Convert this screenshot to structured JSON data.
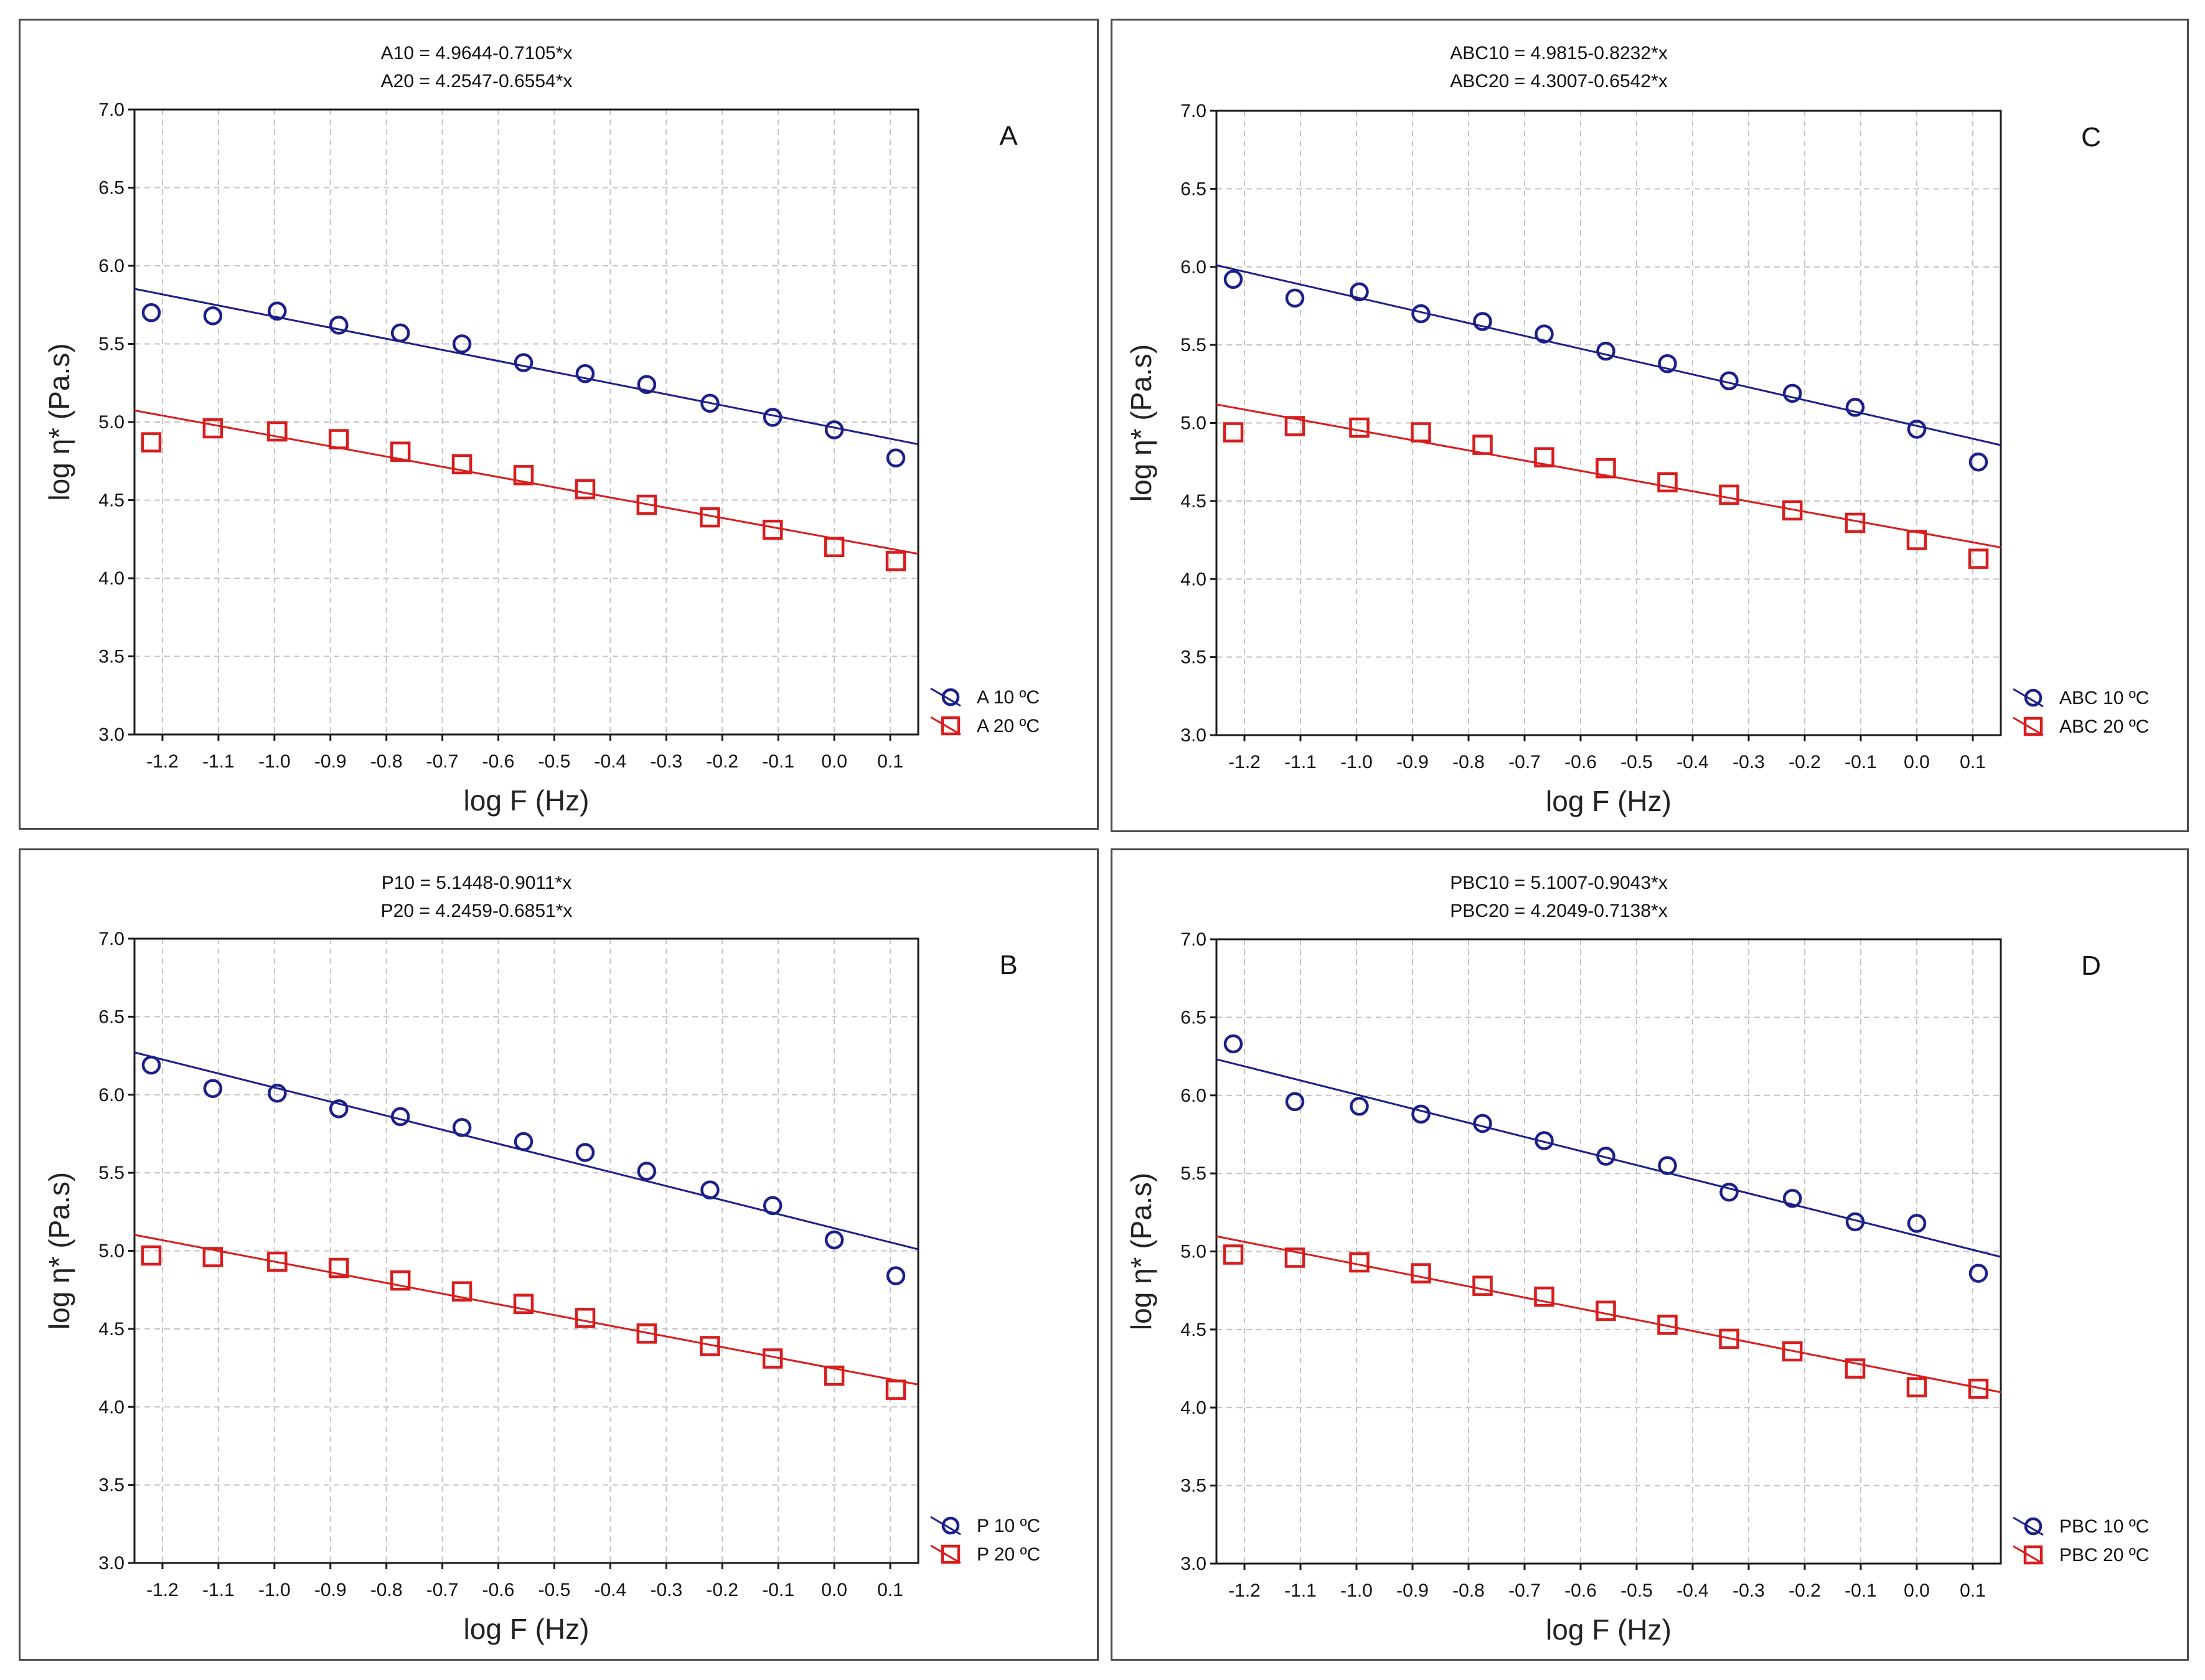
{
  "chart_data": [
    {
      "type": "scatter",
      "panel_label": "A",
      "equations": [
        "A10 = 4.9644-0.7105*x",
        "A20 = 4.2547-0.6554*x"
      ],
      "xlabel": "log F (Hz)",
      "ylabel": "log η* (Pa.s)",
      "xlim": [
        -1.25,
        0.15
      ],
      "ylim": [
        3.0,
        7.0
      ],
      "xticks": [
        "-1.2",
        "-1.1",
        "-1.0",
        "-0.9",
        "-0.8",
        "-0.7",
        "-0.6",
        "-0.5",
        "-0.4",
        "-0.3",
        "-0.2",
        "-0.1",
        "0.0",
        "0.1"
      ],
      "yticks": [
        "3.0",
        "3.5",
        "4.0",
        "4.5",
        "5.0",
        "5.5",
        "6.0",
        "6.5",
        "7.0"
      ],
      "grid": true,
      "legend_position": "bottom-right",
      "series": [
        {
          "name": "A 10 ºC",
          "marker": "circle",
          "color": "#1c1f8a",
          "fit": {
            "intercept": 4.9644,
            "slope": -0.7105
          },
          "x": [
            -1.22,
            -1.11,
            -0.995,
            -0.885,
            -0.775,
            -0.665,
            -0.555,
            -0.445,
            -0.335,
            -0.222,
            -0.11,
            0.0,
            0.11
          ],
          "y": [
            5.7,
            5.68,
            5.71,
            5.62,
            5.57,
            5.5,
            5.38,
            5.31,
            5.24,
            5.12,
            5.03,
            4.95,
            4.77
          ]
        },
        {
          "name": "A 20 ºC",
          "marker": "square",
          "color": "#d91c1c",
          "fit": {
            "intercept": 4.2547,
            "slope": -0.6554
          },
          "x": [
            -1.22,
            -1.11,
            -0.995,
            -0.885,
            -0.775,
            -0.665,
            -0.555,
            -0.445,
            -0.335,
            -0.222,
            -0.11,
            0.0,
            0.11
          ],
          "y": [
            4.87,
            4.96,
            4.94,
            4.89,
            4.81,
            4.73,
            4.66,
            4.57,
            4.47,
            4.39,
            4.31,
            4.2,
            4.11
          ]
        }
      ]
    },
    {
      "type": "scatter",
      "panel_label": "C",
      "equations": [
        "ABC10 = 4.9815-0.8232*x",
        "ABC20 = 4.3007-0.6542*x"
      ],
      "xlabel": "log F (Hz)",
      "ylabel": "log η* (Pa.s)",
      "xlim": [
        -1.25,
        0.15
      ],
      "ylim": [
        3.0,
        7.0
      ],
      "xticks": [
        "-1.2",
        "-1.1",
        "-1.0",
        "-0.9",
        "-0.8",
        "-0.7",
        "-0.6",
        "-0.5",
        "-0.4",
        "-0.3",
        "-0.2",
        "-0.1",
        "0.0",
        "0.1"
      ],
      "yticks": [
        "3.0",
        "3.5",
        "4.0",
        "4.5",
        "5.0",
        "5.5",
        "6.0",
        "6.5",
        "7.0"
      ],
      "grid": true,
      "legend_position": "bottom-right",
      "series": [
        {
          "name": "ABC 10 ºC",
          "marker": "circle",
          "color": "#1c1f8a",
          "fit": {
            "intercept": 4.9815,
            "slope": -0.8232
          },
          "x": [
            -1.22,
            -1.11,
            -0.995,
            -0.885,
            -0.775,
            -0.665,
            -0.555,
            -0.445,
            -0.335,
            -0.222,
            -0.11,
            0.0,
            0.11
          ],
          "y": [
            5.92,
            5.8,
            5.84,
            5.7,
            5.65,
            5.57,
            5.46,
            5.38,
            5.27,
            5.19,
            5.1,
            4.96,
            4.75
          ]
        },
        {
          "name": "ABC 20 ºC",
          "marker": "square",
          "color": "#d91c1c",
          "fit": {
            "intercept": 4.3007,
            "slope": -0.6542
          },
          "x": [
            -1.22,
            -1.11,
            -0.995,
            -0.885,
            -0.775,
            -0.665,
            -0.555,
            -0.445,
            -0.335,
            -0.222,
            -0.11,
            0.0,
            0.11
          ],
          "y": [
            4.94,
            4.98,
            4.97,
            4.94,
            4.86,
            4.78,
            4.71,
            4.62,
            4.54,
            4.44,
            4.36,
            4.25,
            4.13
          ]
        }
      ]
    },
    {
      "type": "scatter",
      "panel_label": "B",
      "equations": [
        "P10 = 5.1448-0.9011*x",
        "P20 = 4.2459-0.6851*x"
      ],
      "xlabel": "log F (Hz)",
      "ylabel": "log η* (Pa.s)",
      "xlim": [
        -1.25,
        0.15
      ],
      "ylim": [
        3.0,
        7.0
      ],
      "xticks": [
        "-1.2",
        "-1.1",
        "-1.0",
        "-0.9",
        "-0.8",
        "-0.7",
        "-0.6",
        "-0.5",
        "-0.4",
        "-0.3",
        "-0.2",
        "-0.1",
        "0.0",
        "0.1"
      ],
      "yticks": [
        "3.0",
        "3.5",
        "4.0",
        "4.5",
        "5.0",
        "5.5",
        "6.0",
        "6.5",
        "7.0"
      ],
      "grid": true,
      "legend_position": "bottom-right",
      "series": [
        {
          "name": "P 10 ºC",
          "marker": "circle",
          "color": "#1c1f8a",
          "fit": {
            "intercept": 5.1448,
            "slope": -0.9011
          },
          "x": [
            -1.22,
            -1.11,
            -0.995,
            -0.885,
            -0.775,
            -0.665,
            -0.555,
            -0.445,
            -0.335,
            -0.222,
            -0.11,
            0.0,
            0.11
          ],
          "y": [
            6.19,
            6.04,
            6.01,
            5.91,
            5.86,
            5.79,
            5.7,
            5.63,
            5.51,
            5.39,
            5.29,
            5.07,
            4.84
          ]
        },
        {
          "name": "P 20 ºC",
          "marker": "square",
          "color": "#d91c1c",
          "fit": {
            "intercept": 4.2459,
            "slope": -0.6851
          },
          "x": [
            -1.22,
            -1.11,
            -0.995,
            -0.885,
            -0.775,
            -0.665,
            -0.555,
            -0.445,
            -0.335,
            -0.222,
            -0.11,
            0.0,
            0.11
          ],
          "y": [
            4.97,
            4.96,
            4.93,
            4.89,
            4.81,
            4.74,
            4.66,
            4.57,
            4.47,
            4.39,
            4.31,
            4.2,
            4.11
          ]
        }
      ]
    },
    {
      "type": "scatter",
      "panel_label": "D",
      "equations": [
        "PBC10 = 5.1007-0.9043*x",
        "PBC20 = 4.2049-0.7138*x"
      ],
      "xlabel": "log F (Hz)",
      "ylabel": "log η* (Pa.s)",
      "xlim": [
        -1.25,
        0.15
      ],
      "ylim": [
        3.0,
        7.0
      ],
      "xticks": [
        "-1.2",
        "-1.1",
        "-1.0",
        "-0.9",
        "-0.8",
        "-0.7",
        "-0.6",
        "-0.5",
        "-0.4",
        "-0.3",
        "-0.2",
        "-0.1",
        "0.0",
        "0.1"
      ],
      "yticks": [
        "3.0",
        "3.5",
        "4.0",
        "4.5",
        "5.0",
        "5.5",
        "6.0",
        "6.5",
        "7.0"
      ],
      "grid": true,
      "legend_position": "bottom-right",
      "series": [
        {
          "name": "PBC 10 ºC",
          "marker": "circle",
          "color": "#1c1f8a",
          "fit": {
            "intercept": 5.1007,
            "slope": -0.9043
          },
          "x": [
            -1.22,
            -1.11,
            -0.995,
            -0.885,
            -0.775,
            -0.665,
            -0.555,
            -0.445,
            -0.335,
            -0.222,
            -0.11,
            0.0,
            0.11
          ],
          "y": [
            6.33,
            5.96,
            5.93,
            5.88,
            5.82,
            5.71,
            5.61,
            5.55,
            5.38,
            5.34,
            5.19,
            5.18,
            4.86
          ]
        },
        {
          "name": "PBC 20 ºC",
          "marker": "square",
          "color": "#d91c1c",
          "fit": {
            "intercept": 4.2049,
            "slope": -0.7138
          },
          "x": [
            -1.22,
            -1.11,
            -0.995,
            -0.885,
            -0.775,
            -0.665,
            -0.555,
            -0.445,
            -0.335,
            -0.222,
            -0.11,
            0.0,
            0.11
          ],
          "y": [
            4.98,
            4.96,
            4.93,
            4.86,
            4.78,
            4.71,
            4.62,
            4.53,
            4.44,
            4.36,
            4.25,
            4.13,
            4.12
          ]
        }
      ]
    }
  ]
}
